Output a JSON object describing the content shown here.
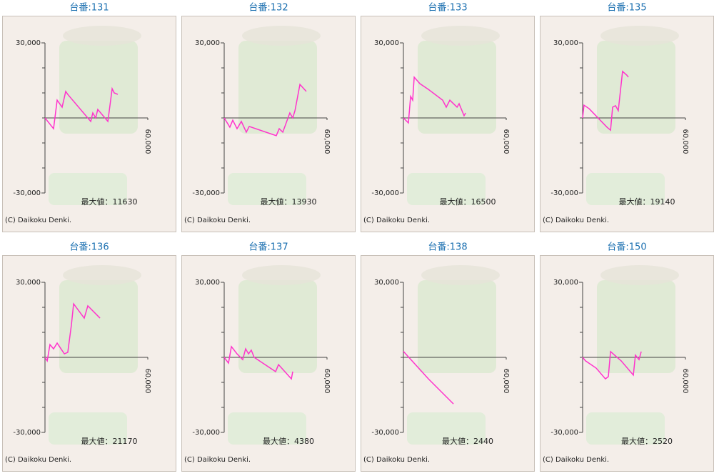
{
  "chart_data": [
    {
      "type": "line",
      "title": "台番:131",
      "color": "#ff33cc",
      "xlim": [
        0,
        60000
      ],
      "xticks": [
        {
          "value": 60000,
          "label": "60,000"
        }
      ],
      "ylim": [
        -30000,
        30000
      ],
      "yticks": [
        {
          "value": 30000,
          "label": "30,000"
        },
        {
          "value": -30000,
          "label": "-30,000"
        }
      ],
      "yminor": [
        20000,
        10000,
        0,
        -10000,
        -20000
      ],
      "annotation": "最大値：11630",
      "credit": "(C) Daikoku Denki.",
      "x": [
        0,
        5000,
        7100,
        10000,
        12100,
        13300,
        26700,
        27900,
        29600,
        30800,
        36700,
        39200,
        40400,
        42500
      ],
      "values": [
        0,
        -4300,
        7100,
        4300,
        10600,
        9400,
        -1400,
        2000,
        0,
        3400,
        -1400,
        11700,
        10000,
        9400
      ]
    },
    {
      "type": "line",
      "title": "台番:132",
      "color": "#ff33cc",
      "xlim": [
        0,
        60000
      ],
      "xticks": [
        {
          "value": 60000,
          "label": "60,000"
        }
      ],
      "ylim": [
        -30000,
        30000
      ],
      "yticks": [
        {
          "value": 30000,
          "label": "30,000"
        },
        {
          "value": -30000,
          "label": "-30,000"
        }
      ],
      "yminor": [
        20000,
        10000,
        0,
        -10000,
        -20000
      ],
      "annotation": "最大値：13930",
      "credit": "(C) Daikoku Denki.",
      "x": [
        0,
        3300,
        5000,
        7500,
        10000,
        12900,
        14600,
        30400,
        32100,
        34200,
        38300,
        40000,
        41300,
        44200,
        47900
      ],
      "values": [
        0,
        -3700,
        -900,
        -4300,
        -1400,
        -5700,
        -3400,
        -7100,
        -4300,
        -5700,
        2000,
        0,
        2900,
        13400,
        10600
      ]
    },
    {
      "type": "line",
      "title": "台番:133",
      "color": "#ff33cc",
      "xlim": [
        0,
        60000
      ],
      "xticks": [
        {
          "value": 60000,
          "label": "60,000"
        }
      ],
      "ylim": [
        -30000,
        30000
      ],
      "yticks": [
        {
          "value": 30000,
          "label": "30,000"
        },
        {
          "value": -30000,
          "label": "-30,000"
        }
      ],
      "yminor": [
        20000,
        10000,
        0,
        -10000,
        -20000
      ],
      "annotation": "最大値：16500",
      "credit": "(C) Daikoku Denki.",
      "x": [
        0,
        2900,
        4200,
        5400,
        6300,
        9600,
        14600,
        22900,
        25000,
        27100,
        31300,
        32500,
        35400,
        36300
      ],
      "values": [
        0,
        -2000,
        8600,
        7100,
        16300,
        13700,
        11400,
        7100,
        4300,
        7100,
        4300,
        5700,
        900,
        2000
      ]
    },
    {
      "type": "line",
      "title": "台番:135",
      "color": "#ff33cc",
      "xlim": [
        0,
        60000
      ],
      "xticks": [
        {
          "value": 60000,
          "label": "60,000"
        }
      ],
      "ylim": [
        -30000,
        30000
      ],
      "yticks": [
        {
          "value": 30000,
          "label": "30,000"
        },
        {
          "value": -30000,
          "label": "-30,000"
        }
      ],
      "yminor": [
        20000,
        10000,
        0,
        -10000,
        -20000
      ],
      "annotation": "最大値：19140",
      "credit": "(C) Daikoku Denki.",
      "x": [
        0,
        800,
        3800,
        14200,
        16300,
        17500,
        19200,
        20800,
        23300,
        25800,
        26700
      ],
      "values": [
        0,
        5100,
        3700,
        -3700,
        -4900,
        4300,
        4900,
        2900,
        18600,
        17100,
        16300
      ]
    },
    {
      "type": "line",
      "title": "台番:136",
      "color": "#ff33cc",
      "xlim": [
        0,
        60000
      ],
      "xticks": [
        {
          "value": 60000,
          "label": "60,000"
        }
      ],
      "ylim": [
        -30000,
        30000
      ],
      "yticks": [
        {
          "value": 30000,
          "label": "30,000"
        },
        {
          "value": -30000,
          "label": "-30,000"
        }
      ],
      "yminor": [
        20000,
        10000,
        0,
        -10000,
        -20000
      ],
      "annotation": "最大値：21170",
      "credit": "(C) Daikoku Denki.",
      "x": [
        0,
        1300,
        2900,
        5000,
        7100,
        11300,
        13300,
        15400,
        16700,
        22900,
        25000,
        32100
      ],
      "values": [
        0,
        -1400,
        5100,
        3400,
        5700,
        1400,
        2000,
        12900,
        21400,
        15700,
        20600,
        15700
      ]
    },
    {
      "type": "line",
      "title": "台番:137",
      "color": "#ff33cc",
      "xlim": [
        0,
        60000
      ],
      "xticks": [
        {
          "value": 60000,
          "label": "60,000"
        }
      ],
      "ylim": [
        -30000,
        30000
      ],
      "yticks": [
        {
          "value": 30000,
          "label": "30,000"
        },
        {
          "value": -30000,
          "label": "-30,000"
        }
      ],
      "yminor": [
        20000,
        10000,
        0,
        -10000,
        -20000
      ],
      "annotation": "最大値：4380",
      "credit": "(C) Daikoku Denki.",
      "x": [
        0,
        2500,
        4200,
        7500,
        10800,
        12500,
        14200,
        15800,
        17500,
        30000,
        31700,
        39200,
        40000
      ],
      "values": [
        0,
        -2300,
        4300,
        1400,
        -900,
        3400,
        1400,
        2900,
        0,
        -5700,
        -2900,
        -8600,
        -5700
      ]
    },
    {
      "type": "line",
      "title": "台番:138",
      "color": "#ff33cc",
      "xlim": [
        0,
        60000
      ],
      "xticks": [
        {
          "value": 60000,
          "label": "60,000"
        }
      ],
      "ylim": [
        -30000,
        30000
      ],
      "yticks": [
        {
          "value": 30000,
          "label": "30,000"
        },
        {
          "value": -30000,
          "label": "-30,000"
        }
      ],
      "yminor": [
        20000,
        10000,
        0,
        -10000,
        -20000
      ],
      "annotation": "最大値：2440",
      "credit": "(C) Daikoku Denki.",
      "x": [
        0,
        14600,
        29200
      ],
      "values": [
        2400,
        -8600,
        -18600
      ]
    },
    {
      "type": "line",
      "title": "台番:150",
      "color": "#ff33cc",
      "xlim": [
        0,
        60000
      ],
      "xticks": [
        {
          "value": 60000,
          "label": "60,000"
        }
      ],
      "ylim": [
        -30000,
        30000
      ],
      "yticks": [
        {
          "value": 30000,
          "label": "30,000"
        },
        {
          "value": -30000,
          "label": "-30,000"
        }
      ],
      "yminor": [
        20000,
        10000,
        0,
        -10000,
        -20000
      ],
      "annotation": "最大値：2520",
      "credit": "(C) Daikoku Denki.",
      "x": [
        0,
        1700,
        7900,
        13300,
        15000,
        16300,
        22500,
        29600,
        30800,
        32900,
        34200
      ],
      "values": [
        0,
        -1400,
        -4300,
        -8600,
        -7700,
        2300,
        -1400,
        -7100,
        900,
        -900,
        2300
      ]
    }
  ]
}
